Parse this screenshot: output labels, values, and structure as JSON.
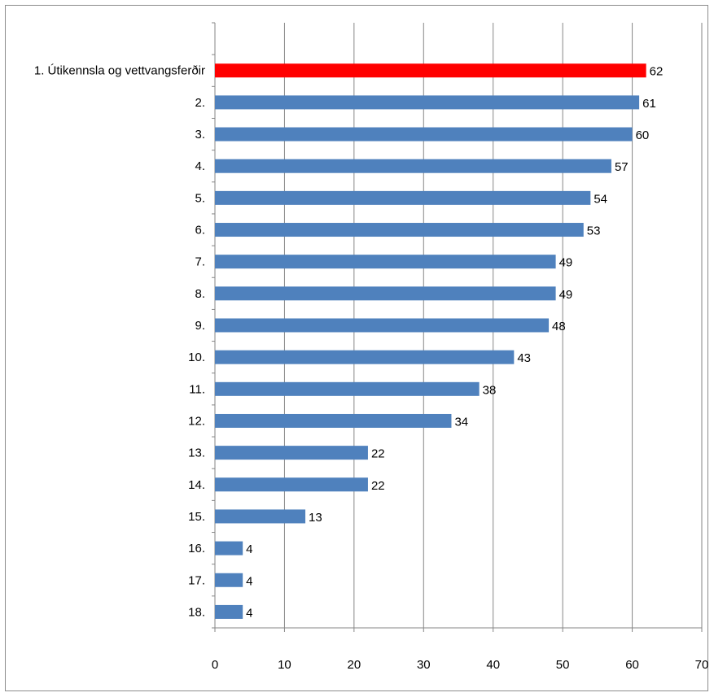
{
  "chart_data": {
    "type": "bar",
    "orientation": "horizontal",
    "categories": [
      "1. Útikennsla og vettvangsferðir",
      "2.",
      "3.",
      "4.",
      "5.",
      "6.",
      "7.",
      "8.",
      "9.",
      "10.",
      "11.",
      "12.",
      "13.",
      "14.",
      "15.",
      "16.",
      "17.",
      "18."
    ],
    "values": [
      62,
      61,
      60,
      57,
      54,
      53,
      49,
      49,
      48,
      43,
      38,
      34,
      22,
      22,
      13,
      4,
      4,
      4
    ],
    "highlight_index": 0,
    "xlim": [
      0,
      70
    ],
    "xticks": [
      0,
      10,
      20,
      30,
      40,
      50,
      60,
      70
    ],
    "title": "",
    "xlabel": "",
    "ylabel": "",
    "grid": "vertical",
    "legend": "none",
    "colors": {
      "bar": "#4f81bd",
      "highlight": "#ff0000",
      "grid": "#868686"
    }
  }
}
